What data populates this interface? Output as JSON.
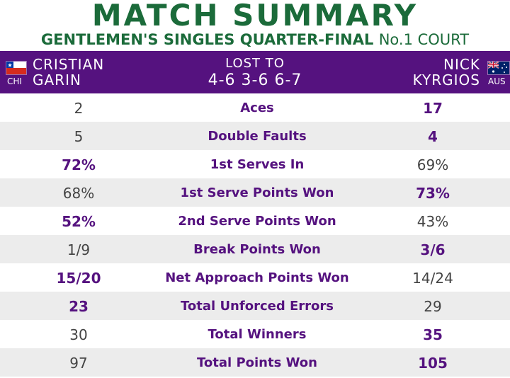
{
  "header": {
    "title": "MATCH SUMMARY",
    "subtitle": "GENTLEMEN'S SINGLES QUARTER-FINAL",
    "court": "No.1 COURT"
  },
  "match": {
    "result": "LOST TO",
    "score": "4-6 3-6 6-7",
    "player1": {
      "first": "CRISTIAN",
      "last": "GARIN",
      "country": "CHI",
      "flag": "chile-flag-icon"
    },
    "player2": {
      "first": "NICK",
      "last": "KYRGIOS",
      "country": "AUS",
      "flag": "australia-flag-icon"
    }
  },
  "colors": {
    "title_green": "#1b6b3a",
    "header_purple": "#55127f",
    "row_alt": "#ececec"
  },
  "stats": [
    {
      "label": "Aces",
      "p1": "2",
      "p2": "17",
      "bold": "p2"
    },
    {
      "label": "Double Faults",
      "p1": "5",
      "p2": "4",
      "bold": "p2"
    },
    {
      "label": "1st Serves In",
      "p1": "72%",
      "p2": "69%",
      "bold": "p1"
    },
    {
      "label": "1st Serve Points Won",
      "p1": "68%",
      "p2": "73%",
      "bold": "p2"
    },
    {
      "label": "2nd Serve Points Won",
      "p1": "52%",
      "p2": "43%",
      "bold": "p1"
    },
    {
      "label": "Break Points Won",
      "p1": "1/9",
      "p2": "3/6",
      "bold": "p2"
    },
    {
      "label": "Net Approach Points Won",
      "p1": "15/20",
      "p2": "14/24",
      "bold": "p1"
    },
    {
      "label": "Total Unforced Errors",
      "p1": "23",
      "p2": "29",
      "bold": "p1"
    },
    {
      "label": "Total Winners",
      "p1": "30",
      "p2": "35",
      "bold": "p2"
    },
    {
      "label": "Total Points Won",
      "p1": "97",
      "p2": "105",
      "bold": "p2"
    }
  ]
}
